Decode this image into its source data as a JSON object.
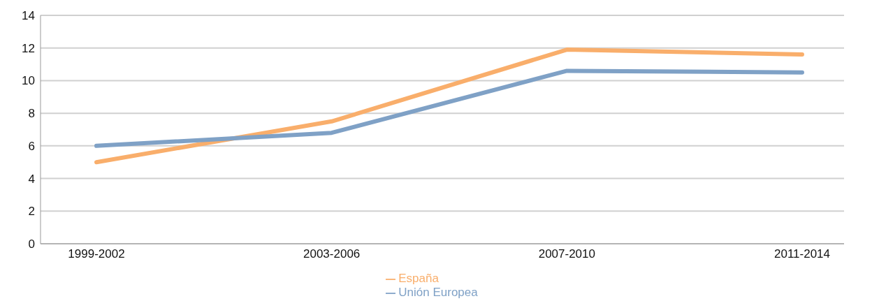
{
  "chart_data": {
    "type": "line",
    "categories": [
      "1999-2002",
      "2003-2006",
      "2007-2010",
      "2011-2014"
    ],
    "series": [
      {
        "name": "España",
        "color": "#f9ae6b",
        "values": [
          5.0,
          7.5,
          11.9,
          11.6
        ]
      },
      {
        "name": "Unión Europea",
        "color": "#7fa1c6",
        "values": [
          6.0,
          6.8,
          10.6,
          10.5
        ]
      }
    ],
    "ylim": [
      0,
      14
    ],
    "yticks": [
      0,
      2,
      4,
      6,
      8,
      10,
      12,
      14
    ],
    "grid": "y",
    "legend": "bottom",
    "marker": "none",
    "line_style": "solid"
  }
}
